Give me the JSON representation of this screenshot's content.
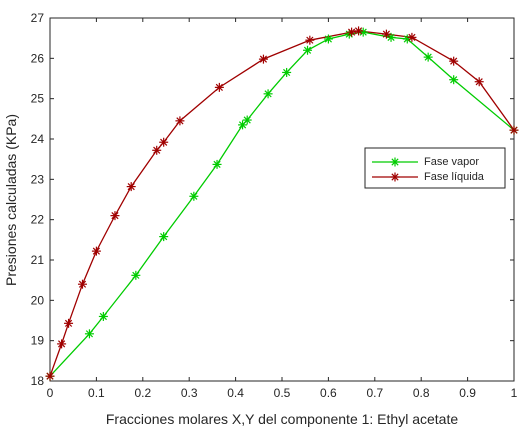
{
  "chart_data": {
    "type": "line",
    "title": "",
    "xlabel": "Fracciones molares X,Y del componente 1: Ethyl acetate",
    "ylabel": "Presiones calculadas (KPa)",
    "xlim": [
      0,
      1
    ],
    "ylim": [
      18,
      27
    ],
    "xticks": [
      0,
      0.1,
      0.2,
      0.3,
      0.4,
      0.5,
      0.6,
      0.7,
      0.8,
      0.9,
      1
    ],
    "xtick_labels": [
      "0",
      "0.1",
      "0.2",
      "0.3",
      "0.4",
      "0.5",
      "0.6",
      "0.7",
      "0.8",
      "0.9",
      "1"
    ],
    "yticks": [
      18,
      19,
      20,
      21,
      22,
      23,
      24,
      25,
      26,
      27
    ],
    "ytick_labels": [
      "18",
      "19",
      "20",
      "21",
      "22",
      "23",
      "24",
      "25",
      "26",
      "27"
    ],
    "grid": false,
    "legend_position": "right, near middle",
    "series": [
      {
        "name": "Fase vapor",
        "color": "#00cc00",
        "marker": "asterisk",
        "x": [
          0,
          0.085,
          0.115,
          0.185,
          0.245,
          0.31,
          0.36,
          0.415,
          0.425,
          0.47,
          0.51,
          0.555,
          0.6,
          0.645,
          0.675,
          0.735,
          0.77,
          0.815,
          0.87,
          1
        ],
        "y": [
          18.12,
          19.17,
          19.6,
          20.62,
          21.58,
          22.58,
          23.37,
          24.35,
          24.47,
          25.12,
          25.65,
          26.2,
          26.48,
          26.6,
          26.65,
          26.52,
          26.48,
          26.03,
          25.47,
          24.22
        ]
      },
      {
        "name": "Fase líquida",
        "color": "#a00000",
        "marker": "asterisk",
        "x": [
          0,
          0.025,
          0.04,
          0.07,
          0.1,
          0.14,
          0.175,
          0.23,
          0.245,
          0.28,
          0.365,
          0.46,
          0.56,
          0.65,
          0.665,
          0.725,
          0.78,
          0.87,
          0.925,
          1
        ],
        "y": [
          18.12,
          18.92,
          19.43,
          20.4,
          21.22,
          22.1,
          22.82,
          23.72,
          23.92,
          24.45,
          25.28,
          25.98,
          26.45,
          26.65,
          26.68,
          26.6,
          26.52,
          25.93,
          25.42,
          24.22
        ]
      }
    ]
  }
}
